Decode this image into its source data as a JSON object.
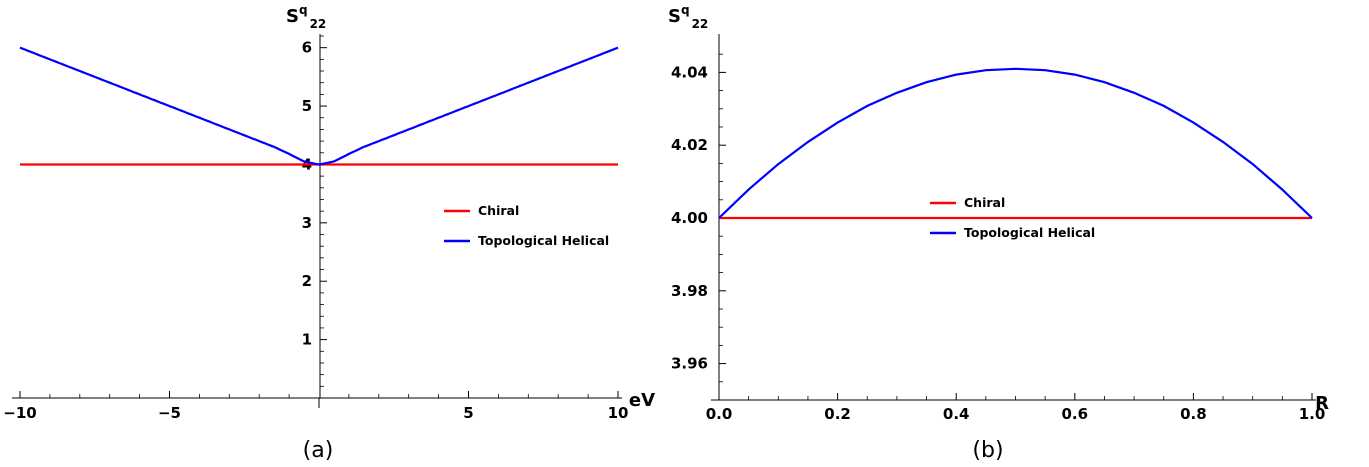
{
  "chart_data": [
    {
      "type": "line",
      "panel_label": "(a)",
      "ylabel_main": "S",
      "ylabel_sup": "q",
      "ylabel_sub": "22",
      "xlabel": "eV",
      "xlim": [
        -10,
        10
      ],
      "ylim": [
        0,
        6.2
      ],
      "x_ticks": [
        -10,
        -5,
        5,
        10
      ],
      "x_tick_labels": [
        "−10",
        "−5",
        "5",
        "10"
      ],
      "y_ticks": [
        1,
        2,
        3,
        4,
        5,
        6
      ],
      "y_tick_labels": [
        "1",
        "2",
        "3",
        "4",
        "5",
        "6"
      ],
      "legend_position": "right",
      "series": [
        {
          "name": "Chiral",
          "color": "#ff0000",
          "x": [
            -10,
            -5,
            0,
            5,
            10
          ],
          "y": [
            4,
            4,
            4,
            4,
            4
          ]
        },
        {
          "name": "Topological Helical",
          "color": "#0000ff",
          "x": [
            -10,
            -8,
            -6,
            -4,
            -3,
            -2,
            -1.5,
            -1,
            -0.5,
            0,
            0.5,
            1,
            1.5,
            2,
            3,
            4,
            6,
            8,
            10
          ],
          "y": [
            6.0,
            5.6,
            5.2,
            4.8,
            4.6,
            4.4,
            4.3,
            4.18,
            4.05,
            4.0,
            4.05,
            4.18,
            4.3,
            4.4,
            4.6,
            4.8,
            5.2,
            5.6,
            6.0
          ]
        }
      ]
    },
    {
      "type": "line",
      "panel_label": "(b)",
      "ylabel_main": "S",
      "ylabel_sup": "q",
      "ylabel_sub": "22",
      "xlabel": "R",
      "xlim": [
        0,
        1
      ],
      "ylim": [
        3.95,
        4.05
      ],
      "x_ticks": [
        0,
        0.2,
        0.4,
        0.6,
        0.8,
        1.0
      ],
      "x_tick_labels": [
        "0.0",
        "0.2",
        "0.4",
        "0.6",
        "0.8",
        "1.0"
      ],
      "y_ticks": [
        3.96,
        3.98,
        4.0,
        4.02,
        4.04
      ],
      "y_tick_labels": [
        "3.96",
        "3.98",
        "4.00",
        "4.02",
        "4.04"
      ],
      "legend_position": "center",
      "series": [
        {
          "name": "Chiral",
          "color": "#ff0000",
          "x": [
            0,
            0.25,
            0.5,
            0.75,
            1.0
          ],
          "y": [
            4.0,
            4.0,
            4.0,
            4.0,
            4.0
          ]
        },
        {
          "name": "Topological Helical",
          "color": "#0000ff",
          "x": [
            0,
            0.05,
            0.1,
            0.15,
            0.2,
            0.25,
            0.3,
            0.35,
            0.4,
            0.45,
            0.5,
            0.55,
            0.6,
            0.65,
            0.7,
            0.75,
            0.8,
            0.85,
            0.9,
            0.95,
            1.0
          ],
          "y": [
            4.0,
            4.0078,
            4.0148,
            4.0209,
            4.0262,
            4.0308,
            4.0344,
            4.0373,
            4.0394,
            4.0406,
            4.041,
            4.0406,
            4.0394,
            4.0373,
            4.0344,
            4.0308,
            4.0262,
            4.0209,
            4.0148,
            4.0078,
            4.0
          ]
        }
      ]
    }
  ]
}
